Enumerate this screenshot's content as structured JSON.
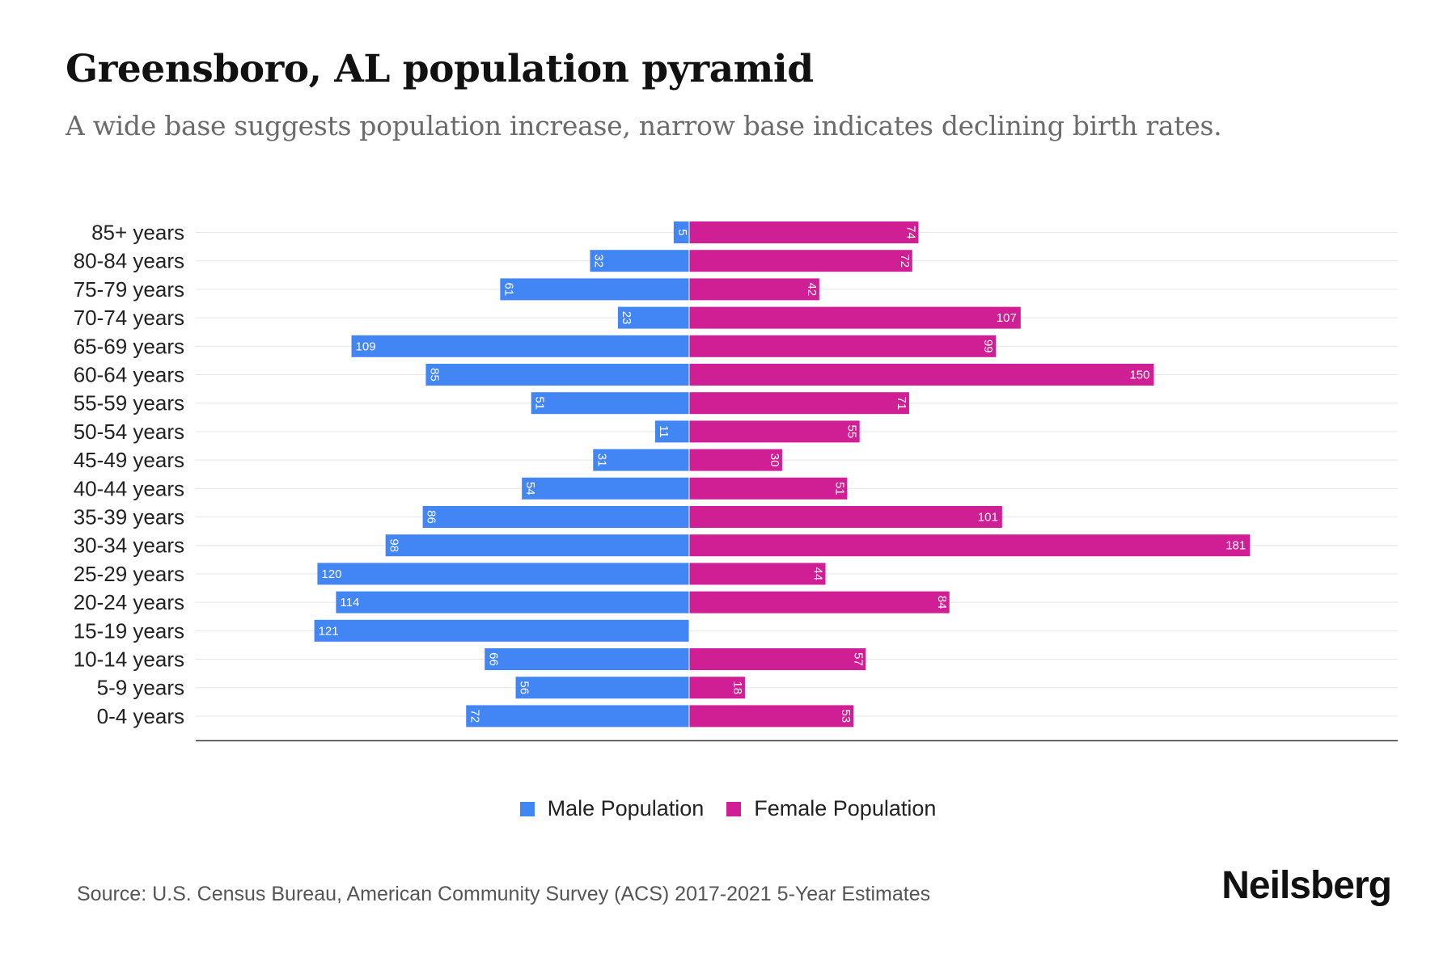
{
  "title": "Greensboro, AL population pyramid",
  "subtitle": "A wide base suggests population increase, narrow base indicates declining birth rates.",
  "legend": {
    "male": "Male Population",
    "female": "Female Population"
  },
  "source": "Source: U.S. Census Bureau, American Community Survey (ACS) 2017-2021 5-Year Estimates",
  "brand": "Neilsberg",
  "colors": {
    "male": "#4285f4",
    "female": "#d01f94",
    "grid": "#e6e6e6",
    "axis": "#333333"
  },
  "chart_data": {
    "type": "bar",
    "orientation": "horizontal-pyramid",
    "categories": [
      "85+ years",
      "80-84 years",
      "75-79 years",
      "70-74 years",
      "65-69 years",
      "60-64 years",
      "55-59 years",
      "50-54 years",
      "45-49 years",
      "40-44 years",
      "35-39 years",
      "30-34 years",
      "25-29 years",
      "20-24 years",
      "15-19 years",
      "10-14 years",
      "5-9 years",
      "0-4 years"
    ],
    "series": [
      {
        "name": "Male Population",
        "values": [
          5,
          32,
          61,
          23,
          109,
          85,
          51,
          11,
          31,
          54,
          86,
          98,
          120,
          114,
          121,
          66,
          56,
          72
        ]
      },
      {
        "name": "Female Population",
        "values": [
          74,
          72,
          42,
          107,
          99,
          150,
          71,
          55,
          30,
          51,
          101,
          181,
          44,
          84,
          0,
          57,
          18,
          53
        ]
      }
    ],
    "xlim": [
      -138,
      198
    ],
    "legend_position": "bottom-center"
  }
}
